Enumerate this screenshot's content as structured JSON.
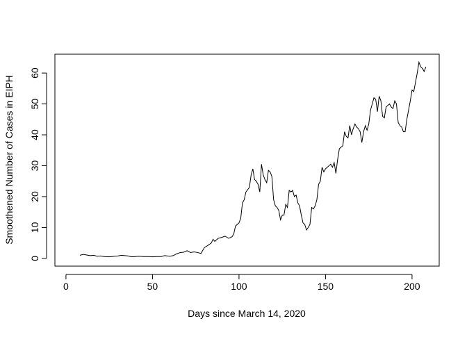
{
  "chart_data": {
    "type": "line",
    "xlabel": "Days since March 14, 2020",
    "ylabel": "Smoothened Number of Cases in EIPH",
    "x": [
      8,
      10,
      12,
      14,
      16,
      18,
      20,
      22,
      25,
      28,
      30,
      32,
      34,
      36,
      38,
      40,
      42,
      45,
      48,
      50,
      52,
      55,
      57,
      60,
      62,
      64,
      66,
      68,
      70,
      72,
      74,
      76,
      78,
      80,
      82,
      84,
      85,
      86,
      88,
      90,
      92,
      94,
      96,
      97,
      98,
      100,
      101,
      102,
      103,
      104,
      106,
      107,
      108,
      109,
      110,
      111,
      112,
      113,
      114,
      115,
      116,
      117,
      118,
      119,
      120,
      121,
      122,
      123,
      124,
      125,
      126,
      127,
      128,
      129,
      130,
      131,
      132,
      133,
      134,
      135,
      136,
      137,
      138,
      139,
      140,
      141,
      142,
      143,
      144,
      145,
      146,
      147,
      148,
      149,
      150,
      151,
      152,
      153,
      154,
      155,
      156,
      157,
      158,
      159,
      160,
      161,
      162,
      163,
      164,
      165,
      166,
      167,
      168,
      169,
      170,
      171,
      172,
      173,
      174,
      175,
      176,
      177,
      178,
      179,
      180,
      181,
      182,
      183,
      184,
      185,
      186,
      187,
      188,
      189,
      190,
      191,
      192,
      193,
      194,
      195,
      196,
      197,
      198,
      199,
      200,
      201,
      202,
      203,
      204,
      205,
      206,
      207,
      208
    ],
    "series": [
      {
        "name": "cases",
        "color": "#000000",
        "values": [
          1,
          1.3,
          1.1,
          0.9,
          1.0,
          0.7,
          0.8,
          0.6,
          0.5,
          0.7,
          0.8,
          1.0,
          0.9,
          0.8,
          0.5,
          0.6,
          0.7,
          0.6,
          0.6,
          0.5,
          0.6,
          0.6,
          0.9,
          0.7,
          0.9,
          1.5,
          1.9,
          2.0,
          2.5,
          1.9,
          2.1,
          1.9,
          1.6,
          3.5,
          4.2,
          5.0,
          6.2,
          5.5,
          6.5,
          6.8,
          7.2,
          6.5,
          7.0,
          8.0,
          10.5,
          11.5,
          13,
          18,
          19,
          21.5,
          23,
          27,
          29,
          25.5,
          25,
          24,
          21.5,
          30.5,
          27,
          25.5,
          24.5,
          28.5,
          28,
          26.5,
          19,
          17,
          16.5,
          15.5,
          12.5,
          14,
          14,
          17.5,
          16.5,
          22,
          21.5,
          22,
          20,
          20.5,
          18,
          17,
          14,
          11.5,
          11,
          9.2,
          10,
          11,
          16.5,
          16,
          17,
          19,
          24,
          25,
          29.5,
          28,
          29,
          29.5,
          30,
          30.5,
          29.5,
          31,
          27.5,
          32,
          35.5,
          36,
          36.5,
          41,
          39.5,
          39,
          43,
          40,
          42,
          43.5,
          42.5,
          42,
          41,
          37.5,
          41,
          43,
          41.5,
          43.5,
          48,
          50,
          52,
          51.5,
          47.5,
          52.5,
          51,
          46,
          45.5,
          49,
          49.5,
          50,
          49,
          48.5,
          51,
          50,
          44,
          43,
          42.5,
          41,
          41,
          45,
          48,
          51,
          54.5,
          54,
          57,
          60,
          63.5,
          62,
          61.5,
          60.5,
          62
        ]
      }
    ],
    "xlim": [
      -6.4,
      215.7
    ],
    "ylim": [
      -2.5,
      66.1
    ],
    "xticks": [
      0,
      50,
      100,
      150,
      200
    ],
    "yticks": [
      0,
      10,
      20,
      30,
      40,
      50,
      60
    ]
  }
}
